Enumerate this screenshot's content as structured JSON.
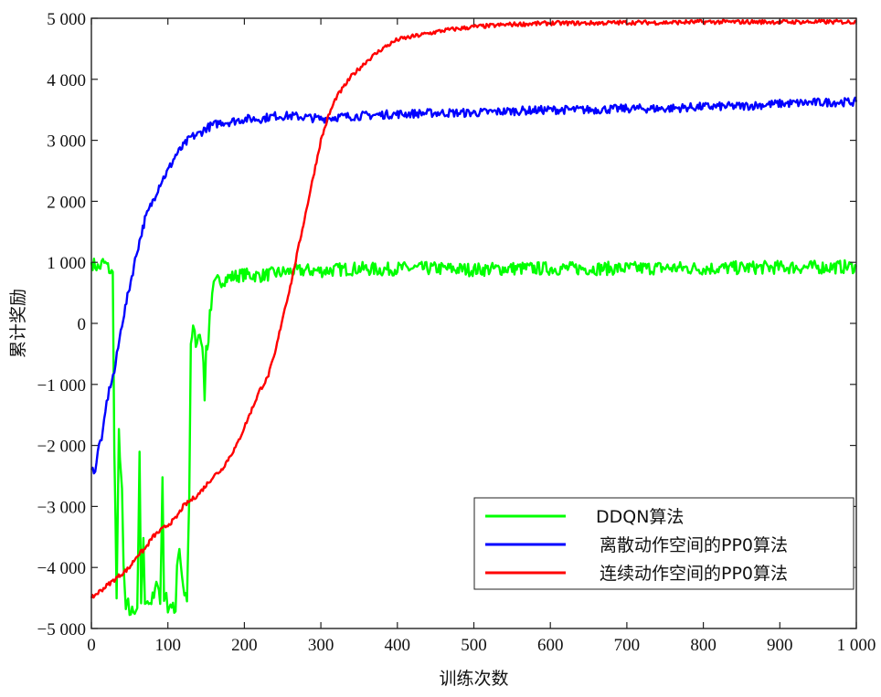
{
  "chart_data": {
    "type": "line",
    "xlabel": "训练次数",
    "ylabel": "累计奖励",
    "xlim": [
      0,
      1000
    ],
    "ylim": [
      -5000,
      5000
    ],
    "x_ticks": [
      0,
      100,
      200,
      300,
      400,
      500,
      600,
      700,
      800,
      900,
      1000
    ],
    "y_ticks": [
      -5000,
      -4000,
      -3000,
      -2000,
      -1000,
      0,
      1000,
      2000,
      3000,
      4000,
      5000
    ],
    "x_tick_labels": [
      "0",
      "100",
      "200",
      "300",
      "400",
      "500",
      "600",
      "700",
      "800",
      "900",
      "1 000"
    ],
    "y_tick_labels": [
      "−5 000",
      "−4 000",
      "−3 000",
      "−2 000",
      "−1 000",
      "0",
      "1 000",
      "2 000",
      "3 000",
      "4 000",
      "5 000"
    ],
    "grid": false,
    "legend_position": "bottom-right",
    "series": [
      {
        "name": "DDQN算法",
        "color": "#00ff00",
        "x": [
          0,
          5,
          10,
          15,
          20,
          25,
          28,
          30,
          33,
          36,
          40,
          42,
          45,
          48,
          50,
          55,
          60,
          63,
          65,
          68,
          70,
          75,
          80,
          85,
          90,
          93,
          95,
          98,
          100,
          105,
          110,
          112,
          115,
          120,
          125,
          128,
          130,
          133,
          135,
          138,
          140,
          145,
          148,
          150,
          153,
          155,
          158,
          160,
          165,
          170,
          180,
          190,
          200,
          220,
          240,
          260,
          280,
          300,
          320,
          350,
          380,
          400,
          450,
          500,
          550,
          600,
          650,
          700,
          750,
          800,
          850,
          900,
          950,
          1000
        ],
        "y": [
          1000,
          950,
          900,
          1000,
          950,
          850,
          800,
          -2000,
          -4500,
          -1800,
          -2800,
          -4000,
          -4700,
          -4600,
          -4750,
          -4700,
          -4650,
          -2200,
          -4600,
          -3600,
          -4500,
          -4600,
          -4500,
          -4200,
          -4600,
          -2500,
          -4500,
          -4400,
          -4700,
          -4600,
          -4800,
          -4000,
          -3700,
          -4400,
          -4500,
          -2800,
          -300,
          -100,
          -200,
          -400,
          -100,
          -300,
          -1200,
          -400,
          -300,
          200,
          400,
          600,
          700,
          700,
          750,
          780,
          800,
          780,
          820,
          850,
          870,
          860,
          880,
          900,
          880,
          900,
          900,
          880,
          900,
          900,
          900,
          900,
          910,
          900,
          910,
          920,
          920,
          930
        ]
      },
      {
        "name": "离散动作空间的PP0算法",
        "color": "#0000ff",
        "x": [
          0,
          5,
          10,
          15,
          20,
          25,
          30,
          35,
          40,
          50,
          60,
          70,
          80,
          90,
          100,
          110,
          120,
          130,
          140,
          150,
          160,
          170,
          180,
          200,
          220,
          240,
          260,
          280,
          300,
          320,
          350,
          380,
          400,
          450,
          500,
          550,
          600,
          650,
          700,
          750,
          800,
          850,
          900,
          950,
          1000
        ],
        "y": [
          -2400,
          -2400,
          -2000,
          -1800,
          -1300,
          -1000,
          -800,
          -400,
          0,
          600,
          1200,
          1700,
          2000,
          2300,
          2500,
          2750,
          2900,
          3050,
          3100,
          3200,
          3250,
          3300,
          3300,
          3350,
          3350,
          3400,
          3400,
          3380,
          3350,
          3380,
          3400,
          3420,
          3430,
          3450,
          3450,
          3480,
          3500,
          3500,
          3520,
          3520,
          3550,
          3560,
          3600,
          3620,
          3630
        ]
      },
      {
        "name": "连续动作空间的PP0算法",
        "color": "#ff0000",
        "x": [
          0,
          10,
          20,
          30,
          40,
          50,
          60,
          70,
          80,
          90,
          100,
          110,
          120,
          130,
          140,
          150,
          160,
          170,
          180,
          190,
          200,
          210,
          220,
          230,
          240,
          250,
          260,
          270,
          280,
          290,
          300,
          310,
          320,
          340,
          360,
          380,
          400,
          420,
          440,
          460,
          480,
          500,
          550,
          600,
          650,
          700,
          750,
          800,
          850,
          900,
          950,
          1000
        ],
        "y": [
          -4500,
          -4400,
          -4300,
          -4200,
          -4100,
          -4000,
          -3800,
          -3700,
          -3500,
          -3400,
          -3300,
          -3200,
          -3000,
          -2900,
          -2800,
          -2650,
          -2500,
          -2400,
          -2200,
          -2000,
          -1700,
          -1400,
          -1100,
          -900,
          -500,
          100,
          600,
          1200,
          1800,
          2400,
          3000,
          3400,
          3700,
          4050,
          4300,
          4500,
          4650,
          4700,
          4750,
          4800,
          4830,
          4860,
          4900,
          4920,
          4920,
          4930,
          4930,
          4940,
          4940,
          4940,
          4940,
          4940
        ]
      }
    ]
  }
}
